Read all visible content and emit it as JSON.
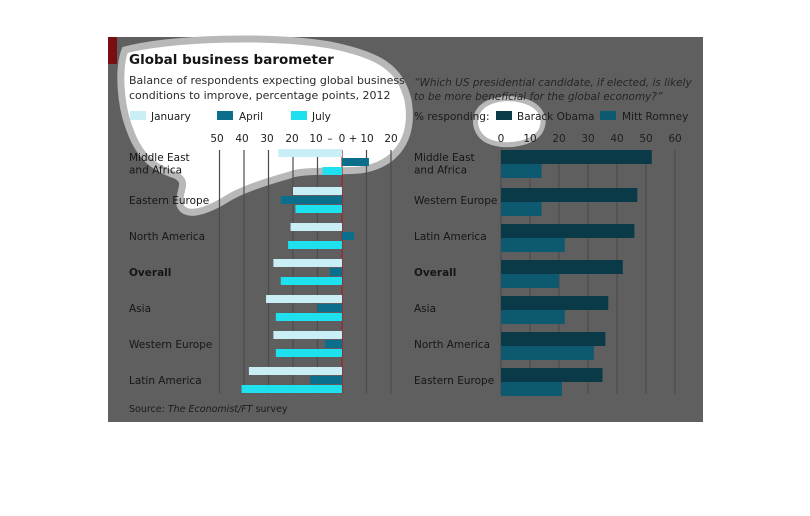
{
  "colors": {
    "panel": "#5f5f5f",
    "january": "#c9eef6",
    "april": "#0b6e8a",
    "july": "#1fe0ef",
    "obama": "#0a3a48",
    "romney": "#0c5970"
  },
  "left": {
    "title": "Global business barometer",
    "subtitle_line1": "Balance of respondents expecting global business",
    "subtitle_line2": "conditions to improve, percentage points, 2012",
    "legend": [
      "January",
      "April",
      "July"
    ],
    "tick_labels": [
      "50",
      "40",
      "30",
      "20",
      "10",
      "–",
      "0",
      "+",
      "10",
      "20"
    ]
  },
  "right": {
    "question_line1": "“Which US presidential candidate, if elected, is likely",
    "question_line2": "to be more beneficial for the global economy?”",
    "prefix": "% responding:",
    "legend": [
      "Barack Obama",
      "Mitt Romney"
    ],
    "tick_labels": [
      "0",
      "10",
      "20",
      "30",
      "40",
      "50",
      "60"
    ]
  },
  "source_prefix": "Source: ",
  "source_italic": "The Economist/FT",
  "source_suffix": " survey",
  "chart_data": [
    {
      "type": "bar",
      "orientation": "horizontal",
      "title": "Global business barometer",
      "subtitle": "Balance of respondents expecting global business conditions to improve, percentage points, 2012",
      "categories": [
        "Middle East and Africa",
        "Eastern Europe",
        "North America",
        "Overall",
        "Asia",
        "Western Europe",
        "Latin America"
      ],
      "category_lines": [
        [
          "Middle East",
          "and Africa"
        ],
        [
          "Eastern Europe"
        ],
        [
          "North America"
        ],
        [
          "Overall"
        ],
        [
          "Asia"
        ],
        [
          "Western Europe"
        ],
        [
          "Latin America"
        ]
      ],
      "bold_category": "Overall",
      "series": [
        {
          "name": "January",
          "values": [
            -26,
            -20,
            -21,
            -28,
            -31,
            -28,
            -38
          ]
        },
        {
          "name": "April",
          "values": [
            11,
            -25,
            5,
            -5,
            -10,
            -7,
            -13
          ]
        },
        {
          "name": "July",
          "values": [
            -8,
            -19,
            -22,
            -25,
            -27,
            -27,
            -41
          ]
        }
      ],
      "xlim": [
        -50,
        20
      ],
      "xticks": [
        -50,
        -40,
        -30,
        -20,
        -10,
        0,
        10,
        20
      ],
      "grid": true,
      "zero_line": true
    },
    {
      "type": "bar",
      "orientation": "horizontal",
      "title": "“Which US presidential candidate, if elected, is likely to be more beneficial for the global economy?”",
      "categories": [
        "Middle East and Africa",
        "Western Europe",
        "Latin America",
        "Overall",
        "Asia",
        "North America",
        "Eastern Europe"
      ],
      "category_lines": [
        [
          "Middle East",
          "and Africa"
        ],
        [
          "Western Europe"
        ],
        [
          "Latin America"
        ],
        [
          "Overall"
        ],
        [
          "Asia"
        ],
        [
          "North America"
        ],
        [
          "Eastern Europe"
        ]
      ],
      "bold_category": "Overall",
      "series": [
        {
          "name": "Barack Obama",
          "values": [
            52,
            47,
            46,
            42,
            37,
            36,
            35
          ]
        },
        {
          "name": "Mitt Romney",
          "values": [
            14,
            14,
            22,
            20,
            22,
            32,
            21
          ]
        }
      ],
      "xlim": [
        0,
        60
      ],
      "xticks": [
        0,
        10,
        20,
        30,
        40,
        50,
        60
      ],
      "grid": true
    }
  ]
}
